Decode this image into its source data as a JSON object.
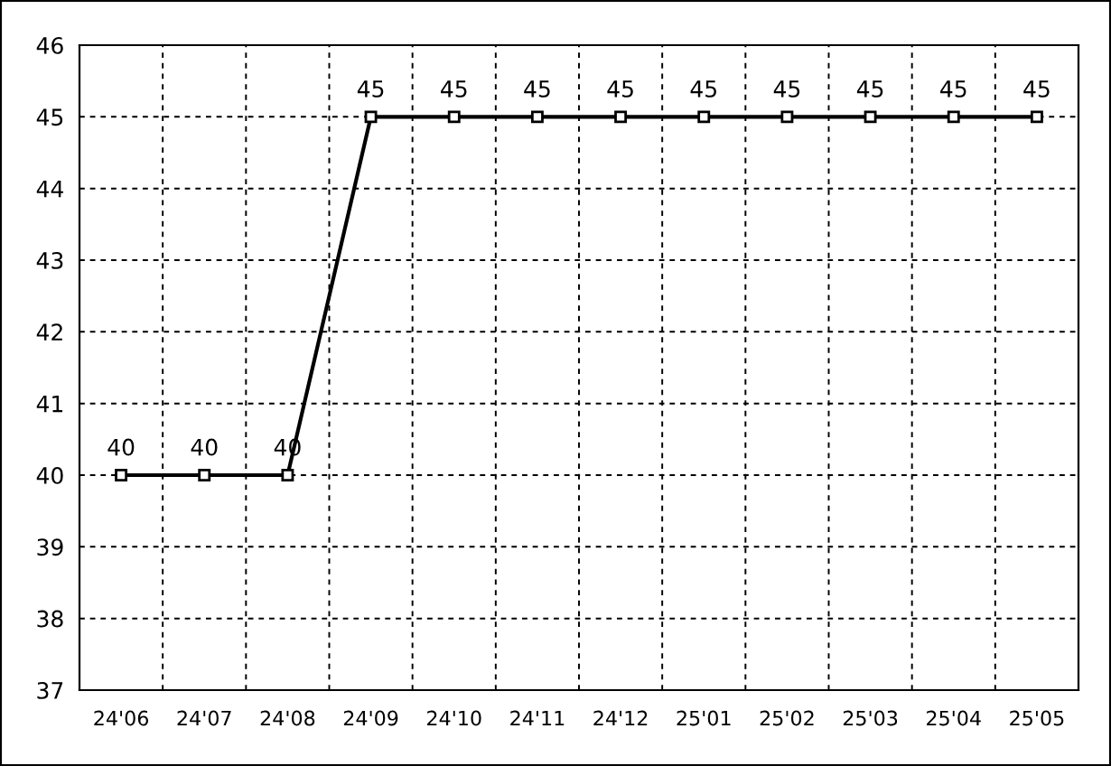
{
  "chart_data": {
    "type": "line",
    "categories": [
      "24'06",
      "24'07",
      "24'08",
      "24'09",
      "24'10",
      "24'11",
      "24'12",
      "25'01",
      "25'02",
      "25'03",
      "25'04",
      "25'05"
    ],
    "series": [
      {
        "color": "#000000",
        "values": [
          40,
          40,
          40,
          45,
          45,
          45,
          45,
          45,
          45,
          45,
          45,
          45
        ]
      }
    ],
    "ylim": [
      37,
      46
    ],
    "yticks": [
      37,
      38,
      39,
      40,
      41,
      42,
      43,
      44,
      45,
      46
    ],
    "grid": true,
    "marker": "square",
    "line_style": "solid",
    "data_labels": true
  }
}
